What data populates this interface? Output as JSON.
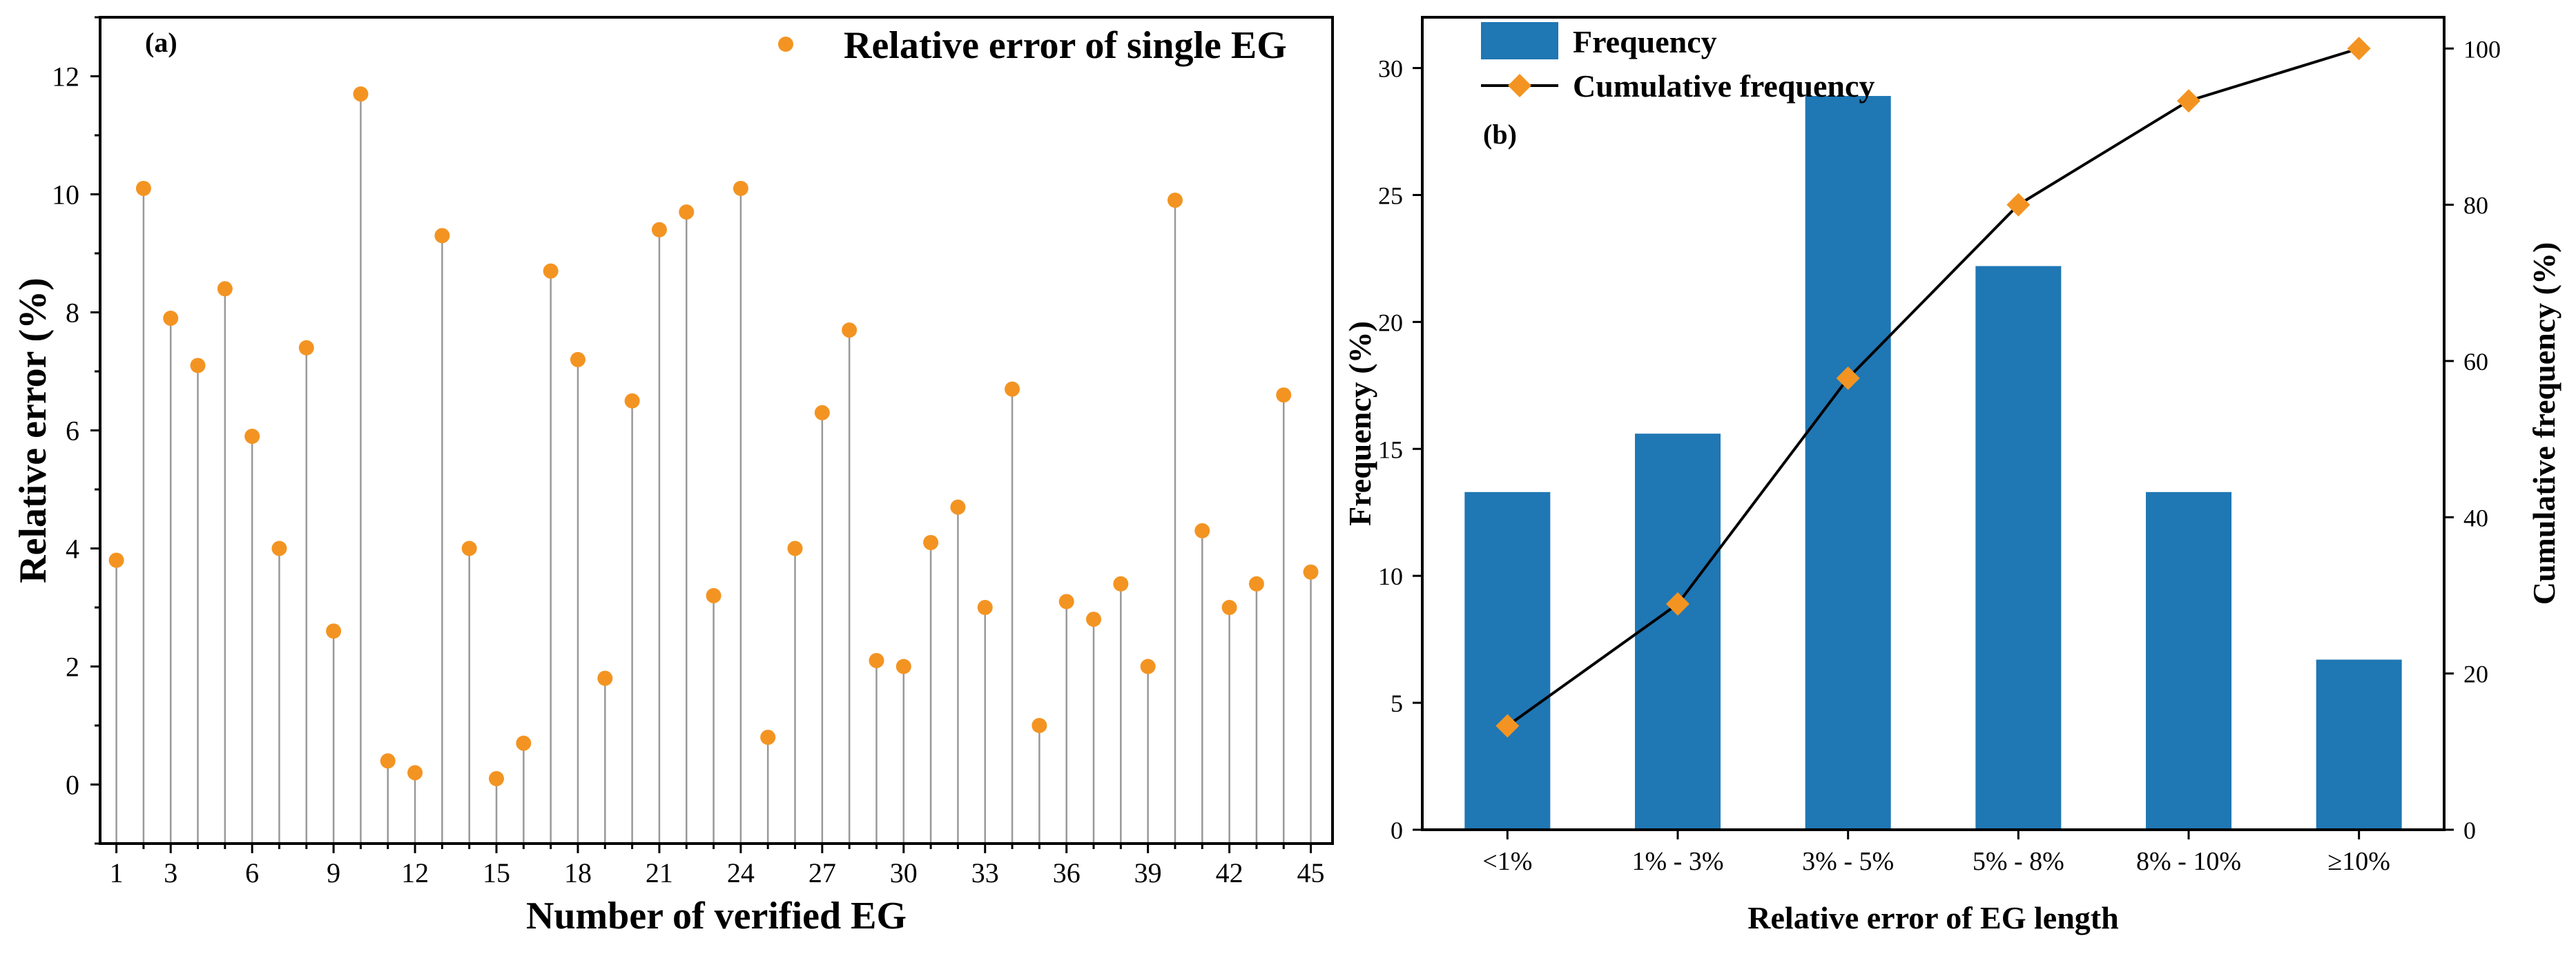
{
  "colors": {
    "stem": "#999999",
    "marker": "#f39422",
    "bar": "#1f77b4",
    "line": "#000000",
    "axis": "#000000"
  },
  "chart_data": [
    {
      "type": "scatter",
      "panel_label": "(a)",
      "title": "",
      "xlabel": "Number of verified EG",
      "ylabel": "Relative error (%)",
      "legend": {
        "label": "Relative error of single EG",
        "position": "top-right"
      },
      "xlim": [
        0.4,
        45.8
      ],
      "ylim": [
        -1,
        13
      ],
      "x_ticks": [
        1,
        3,
        6,
        9,
        12,
        15,
        18,
        21,
        24,
        27,
        30,
        33,
        36,
        39,
        42,
        45
      ],
      "x_ticks_minor": [
        2,
        4,
        5,
        7,
        8,
        10,
        11,
        13,
        14,
        16,
        17,
        19,
        20,
        22,
        23,
        25,
        26,
        28,
        29,
        31,
        32,
        34,
        35,
        37,
        38,
        40,
        41,
        43,
        44
      ],
      "y_ticks": [
        0,
        2,
        4,
        6,
        8,
        10,
        12
      ],
      "x": [
        1,
        2,
        3,
        4,
        5,
        6,
        7,
        8,
        9,
        10,
        11,
        12,
        13,
        14,
        15,
        16,
        17,
        18,
        19,
        20,
        21,
        22,
        23,
        24,
        25,
        26,
        27,
        28,
        29,
        30,
        31,
        32,
        33,
        34,
        35,
        36,
        37,
        38,
        39,
        40,
        41,
        42,
        43,
        44,
        45
      ],
      "values": [
        3.8,
        10.1,
        7.9,
        7.1,
        8.4,
        5.9,
        4.0,
        7.4,
        2.6,
        11.7,
        0.4,
        0.2,
        9.3,
        4.0,
        0.1,
        0.7,
        8.7,
        7.2,
        1.8,
        6.5,
        9.4,
        9.7,
        3.2,
        10.1,
        0.8,
        4.0,
        6.3,
        7.7,
        2.1,
        2.0,
        4.1,
        4.7,
        3.0,
        6.7,
        1.0,
        3.1,
        2.8,
        3.4,
        2.0,
        9.9,
        4.3,
        3.0,
        3.4,
        6.6,
        3.6
      ]
    },
    {
      "type": "bar",
      "panel_label": "(b)",
      "title": "",
      "xlabel": "Relative error of EG length",
      "ylabel": "Frequency (%)",
      "y2label": "Cumulative frequency (%)",
      "categories": [
        "<1%",
        "1% - 3%",
        "3% - 5%",
        "5% - 8%",
        "8% - 10%",
        "≥10%"
      ],
      "ylim": [
        0,
        32
      ],
      "y2lim": [
        0,
        104
      ],
      "y_ticks": [
        0,
        5,
        10,
        15,
        20,
        25,
        30
      ],
      "y2_ticks": [
        0,
        20,
        40,
        60,
        80,
        100
      ],
      "series": [
        {
          "name": "Frequency",
          "type": "bar",
          "axis": "left",
          "values": [
            13.3,
            15.6,
            28.9,
            22.2,
            13.3,
            6.7
          ]
        },
        {
          "name": "Cumulative frequency",
          "type": "line",
          "axis": "right",
          "values": [
            13.3,
            28.9,
            57.8,
            80.0,
            93.3,
            100.0
          ]
        }
      ],
      "legend_position": "top-left"
    }
  ]
}
